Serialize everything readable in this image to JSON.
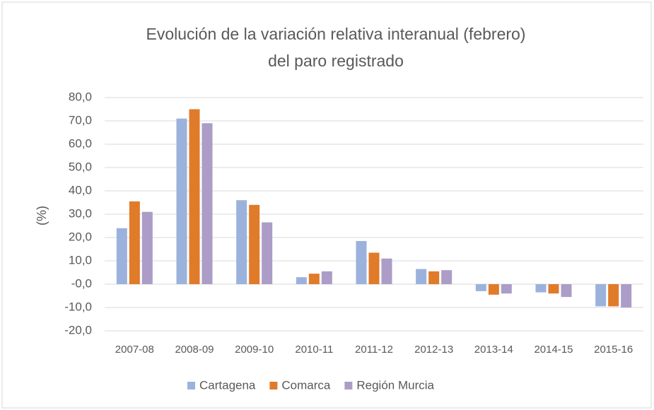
{
  "chart_data": {
    "type": "bar",
    "title": [
      "Evolución de la variación relativa interanual (febrero)",
      "del paro registrado"
    ],
    "y_label": "(%)",
    "categories": [
      "2007-08",
      "2008-09",
      "2009-10",
      "2010-11",
      "2011-12",
      "2012-13",
      "2013-14",
      "2014-15",
      "2015-16"
    ],
    "series": [
      {
        "name": "Cartagena",
        "color": "#9bb2dd",
        "values": [
          24,
          71,
          36,
          3,
          18.5,
          6.5,
          -3,
          -3.5,
          -9.5
        ]
      },
      {
        "name": "Comarca",
        "color": "#e07b2a",
        "values": [
          35.5,
          75,
          34,
          4.5,
          13.5,
          5.5,
          -4.5,
          -4,
          -9.5
        ]
      },
      {
        "name": "Región Murcia",
        "color": "#ab9dc7",
        "values": [
          31,
          69,
          26.5,
          5.5,
          11,
          6,
          -4,
          -5.5,
          -10
        ]
      }
    ],
    "ylim": [
      -20,
      80
    ],
    "yticks": [
      {
        "value": -20,
        "label": "-20,0"
      },
      {
        "value": -10,
        "label": "-10,0"
      },
      {
        "value": 0,
        "label": "-0,0"
      },
      {
        "value": 10,
        "label": "10,0"
      },
      {
        "value": 20,
        "label": "20,0"
      },
      {
        "value": 30,
        "label": "30,0"
      },
      {
        "value": 40,
        "label": "40,0"
      },
      {
        "value": 50,
        "label": "50,0"
      },
      {
        "value": 60,
        "label": "60,0"
      },
      {
        "value": 70,
        "label": "70,0"
      },
      {
        "value": 80,
        "label": "80,0"
      }
    ],
    "grid": true,
    "legend": "bottom"
  }
}
